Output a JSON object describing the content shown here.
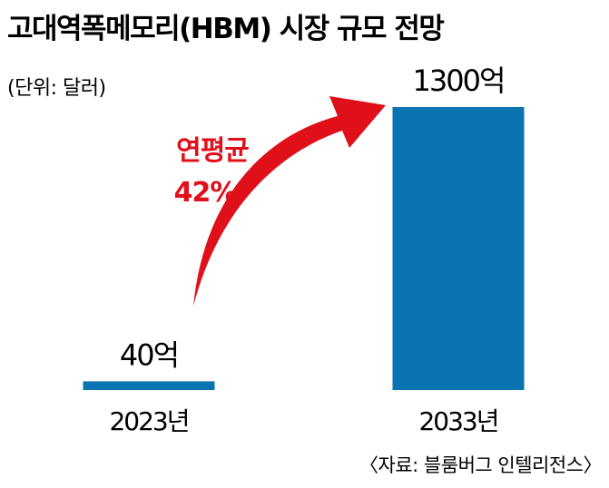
{
  "chart_data": {
    "type": "bar",
    "title": "고대역폭메모리(HBM) 시장 규모 전망",
    "unit_label": "(단위: 달러)",
    "categories": [
      "2023년",
      "2033년"
    ],
    "values": [
      40,
      1300
    ],
    "value_labels": [
      "40억",
      "1300억"
    ],
    "ylim": [
      0,
      1300
    ],
    "bar_color": "#0a74b1",
    "grid": false,
    "annotation": {
      "lines": [
        "연평균",
        "42%"
      ],
      "color": "#e0101a",
      "arrow": "from 2023년 bar to 2033년 bar"
    },
    "source": "〈자료: 블룸버그 인텔리전스〉"
  }
}
